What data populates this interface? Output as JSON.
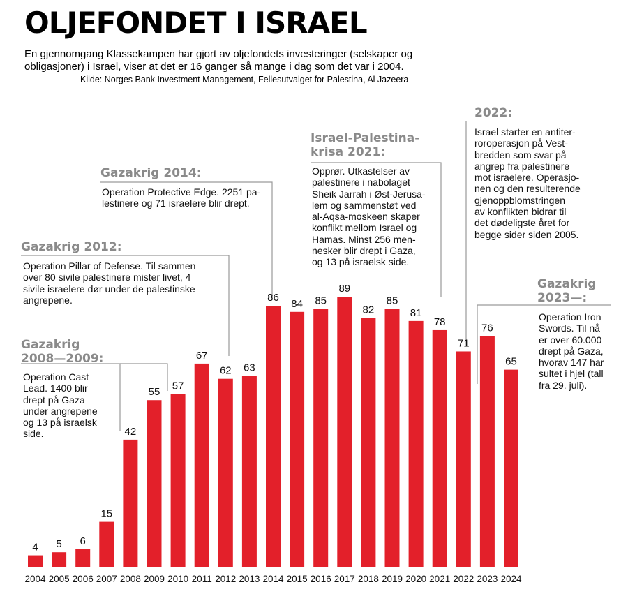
{
  "header": {
    "title": "OLJEFONDET I ISRAEL",
    "intro": "En gjennomgang Klassekampen har gjort av oljefondets investeringer (selskaper og obligasjoner) i Israel, viser at det er 16 ganger så mange i dag som det var i 2004.",
    "source": "Kilde: Norges Bank Investment Management, Fellesutvalget for Palestina, Al Jazeera"
  },
  "annotations": {
    "gaza0809": {
      "title": "Gazakrig\n2008—2009:",
      "text": "Operation Cast\nLead. 1400 blir\ndrept på Gaza\nunder angrepene\nog 13 på israelsk\nside."
    },
    "gaza2012": {
      "title": "Gazakrig 2012:",
      "text": "Operation Pillar of Defense. Til sammen\nover 80 sivile palestinere mister livet, 4\nsivile israelere dør under de palestinske\nangrepene."
    },
    "gaza2014": {
      "title": "Gazakrig 2014:",
      "text": "Operation Protective Edge. 2251 pa-\nlestinere og 71 israelere blir drept."
    },
    "crisis2021": {
      "title": "Israel-Palestina-\nkrisa 2021:",
      "text": "Opprør. Utkastelser av\npalestinere i nabolaget\nSheik Jarrah i Øst-Jerusa-\nlem og sammenstøt ved\nal-Aqsa-moskeen skaper\nkonflikt mellom Israel og\nHamas. Minst 256 men-\nnesker blir drept i Gaza,\nog 13 på israelsk side."
    },
    "y2022": {
      "title": "2022:",
      "text": "Israel starter en antiter-\nroroperasjon på Vest-\nbredden som svar på\nangrep fra palestinere\nmot israelere. Operasjo-\nnen og den resulterende\ngjenoppblomstringen\nav konflikten bidrar til\ndet dødeligste året for\nbegge sider siden 2005."
    },
    "gaza2023": {
      "title": "Gazakrig\n2023—:",
      "text": "Operation Iron\nSwords. Til nå\ner over 60.000\ndrept på Gaza,\nhvorav 147 har\nsultet i hjel (tall\nfra 29. juli)."
    }
  },
  "chart_data": {
    "type": "bar",
    "categories": [
      "2004",
      "2005",
      "2006",
      "2007",
      "2008",
      "2009",
      "2010",
      "2011",
      "2012",
      "2013",
      "2014",
      "2015",
      "2016",
      "2017",
      "2018",
      "2019",
      "2020",
      "2021",
      "2022",
      "2023",
      "2024"
    ],
    "values": [
      4,
      5,
      6,
      15,
      42,
      55,
      57,
      67,
      62,
      63,
      86,
      84,
      85,
      89,
      82,
      85,
      81,
      78,
      71,
      76,
      65
    ],
    "bar_color": "#e3202a",
    "leader_color": "#9a9a9a",
    "title": "OLJEFONDET I ISRAEL",
    "xlabel": "",
    "ylabel": "",
    "ylim": [
      0,
      89
    ],
    "grid": false,
    "data_labels": true
  }
}
